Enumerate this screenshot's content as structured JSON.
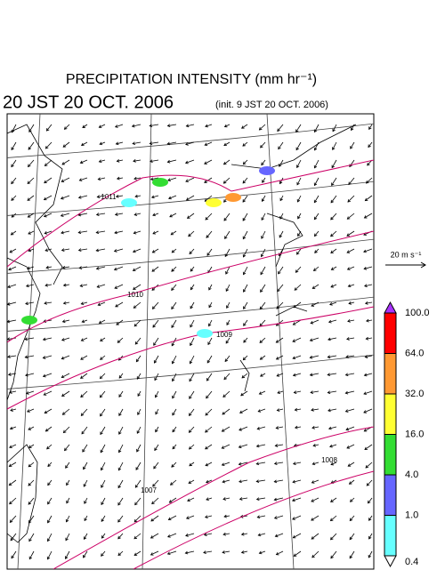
{
  "header": {
    "title": "PRECIPITATION INTENSITY (mm hr⁻¹)",
    "time": "20 JST 20 OCT. 2006",
    "init": "(init. 9 JST 20 OCT. 2006)"
  },
  "wind_scale": {
    "label": "20 m s⁻¹"
  },
  "isobar_labels": [
    "1011",
    "1010",
    "1009",
    "1008",
    "1007"
  ],
  "colorbar": {
    "ticks": [
      {
        "value": 100,
        "label": "100.0"
      },
      {
        "value": 64,
        "label": "64.0"
      },
      {
        "value": 32,
        "label": "32.0"
      },
      {
        "value": 16,
        "label": "16.0"
      },
      {
        "value": 4,
        "label": "4.0"
      },
      {
        "value": 1,
        "label": "1.0"
      },
      {
        "value": 0.4,
        "label": "0.4"
      }
    ],
    "colors": [
      "#ff0000",
      "#ff9933",
      "#ffff33",
      "#33dd33",
      "#6666ff",
      "#66ffff"
    ],
    "over_color": "#aa33ff",
    "under_color": "#ffffff"
  }
}
